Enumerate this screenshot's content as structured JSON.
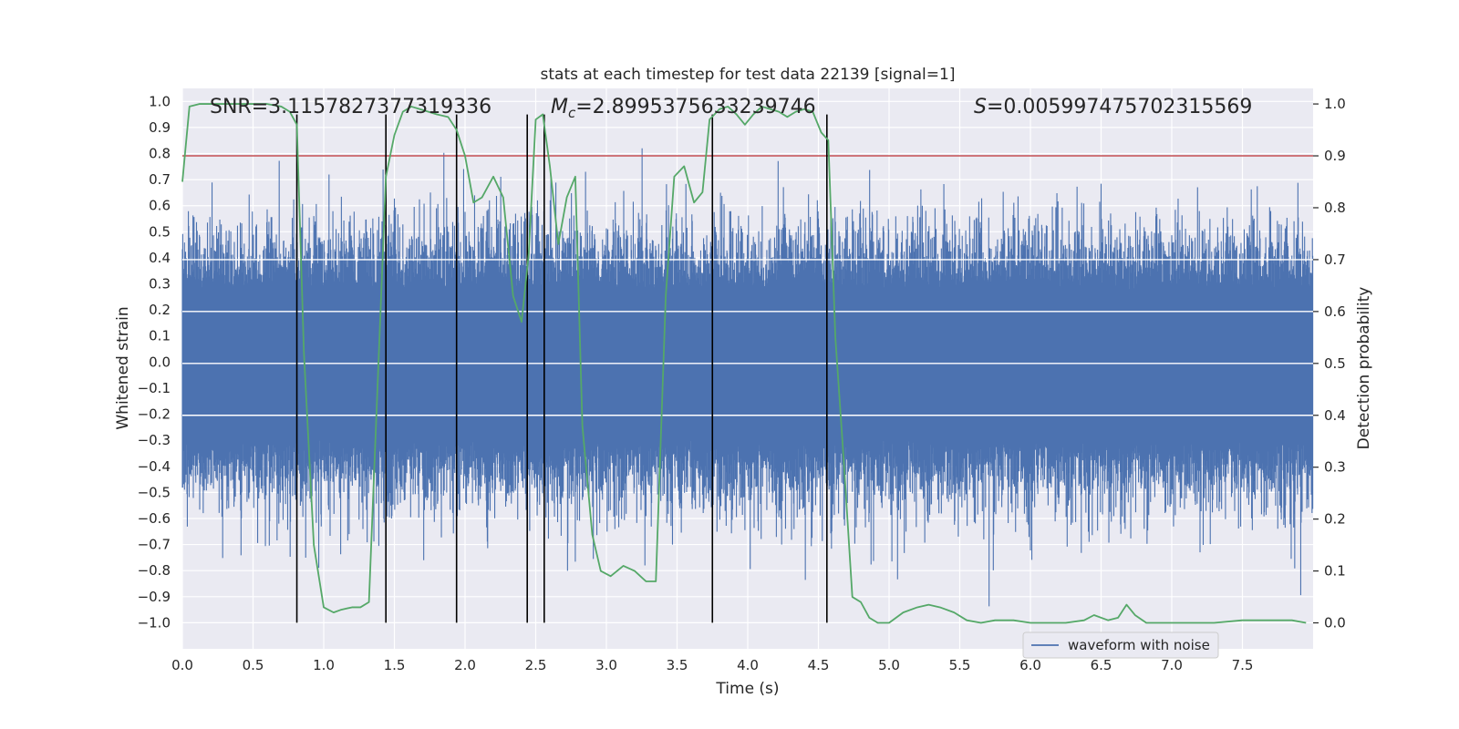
{
  "chart_data": {
    "type": "line",
    "title": "stats at each timestep for test data 22139 [signal=1]",
    "xlabel": "Time (s)",
    "ylabel": "Whitened strain",
    "y2label": "Detection probability",
    "xlim": [
      0.0,
      8.0
    ],
    "ylim": [
      -1.1,
      1.05
    ],
    "y2lim": [
      -0.05,
      1.03
    ],
    "x_ticks": [
      "0.0",
      "0.5",
      "1.0",
      "1.5",
      "2.0",
      "2.5",
      "3.0",
      "3.5",
      "4.0",
      "4.5",
      "5.0",
      "5.5",
      "6.0",
      "6.5",
      "7.0",
      "7.5"
    ],
    "y_ticks": [
      "1.0",
      "0.9",
      "0.8",
      "0.7",
      "0.6",
      "0.5",
      "0.4",
      "0.3",
      "0.2",
      "0.1",
      "0.0",
      "-0.1",
      "-0.2",
      "-0.3",
      "-0.4",
      "-0.5",
      "-0.6",
      "-0.7",
      "-0.8",
      "-0.9",
      "-1.0"
    ],
    "y2_ticks": [
      "1.0",
      "0.9",
      "0.8",
      "0.7",
      "0.6",
      "0.5",
      "0.4",
      "0.3",
      "0.2",
      "0.1",
      "0.0"
    ],
    "annotations": {
      "snr": "SNR=3.1157827377319336",
      "mc_symbol": "M",
      "mc_sub": "c",
      "mc_value": "=2.8995375633239746",
      "s_symbol": "S",
      "s_value": "=0.005997475702315569"
    },
    "grid": true,
    "legend_position": "lower center",
    "series": [
      {
        "name": "waveform with noise",
        "color": "#4c72b0",
        "axis": "left",
        "description_values": {
          "typical_abs": 0.3,
          "peak_max": 0.82,
          "peak_min": -1.0,
          "sample_rate_hz": 2048
        }
      },
      {
        "axis": "right",
        "color": "#55a868",
        "x": [
          0.0,
          0.05,
          0.12,
          0.2,
          0.3,
          0.4,
          0.5,
          0.6,
          0.7,
          0.76,
          0.81,
          0.86,
          0.93,
          1.0,
          1.07,
          1.12,
          1.2,
          1.26,
          1.32,
          1.38,
          1.44,
          1.5,
          1.56,
          1.62,
          1.68,
          1.74,
          1.8,
          1.88,
          1.94,
          2.0,
          2.06,
          2.12,
          2.2,
          2.27,
          2.34,
          2.4,
          2.45,
          2.5,
          2.55,
          2.6,
          2.66,
          2.72,
          2.78,
          2.83,
          2.9,
          2.96,
          3.03,
          3.12,
          3.2,
          3.28,
          3.35,
          3.42,
          3.48,
          3.55,
          3.62,
          3.68,
          3.73,
          3.8,
          3.86,
          3.92,
          3.98,
          4.04,
          4.1,
          4.16,
          4.22,
          4.28,
          4.34,
          4.4,
          4.46,
          4.52,
          4.57,
          4.62,
          4.68,
          4.74,
          4.8,
          4.86,
          4.92,
          5.0,
          5.1,
          5.2,
          5.28,
          5.36,
          5.46,
          5.55,
          5.65,
          5.75,
          5.88,
          6.0,
          6.12,
          6.25,
          6.38,
          6.45,
          6.55,
          6.62,
          6.68,
          6.74,
          6.82,
          6.95,
          7.1,
          7.3,
          7.5,
          7.7,
          7.85,
          7.95
        ],
        "values": [
          0.85,
          0.995,
          1.0,
          1.0,
          1.0,
          1.0,
          1.0,
          1.0,
          0.995,
          0.985,
          0.96,
          0.52,
          0.15,
          0.03,
          0.02,
          0.025,
          0.03,
          0.03,
          0.04,
          0.45,
          0.86,
          0.94,
          0.985,
          0.995,
          0.99,
          0.985,
          0.98,
          0.975,
          0.95,
          0.9,
          0.81,
          0.82,
          0.86,
          0.82,
          0.63,
          0.58,
          0.71,
          0.97,
          0.98,
          0.88,
          0.73,
          0.82,
          0.86,
          0.38,
          0.17,
          0.1,
          0.09,
          0.11,
          0.1,
          0.08,
          0.08,
          0.63,
          0.86,
          0.88,
          0.81,
          0.83,
          0.97,
          0.99,
          0.995,
          0.98,
          0.96,
          0.98,
          0.995,
          0.99,
          0.985,
          0.975,
          0.985,
          0.99,
          0.985,
          0.945,
          0.93,
          0.55,
          0.31,
          0.05,
          0.04,
          0.01,
          0.0,
          0.0,
          0.02,
          0.03,
          0.035,
          0.03,
          0.02,
          0.005,
          0.0,
          0.005,
          0.005,
          0.0,
          0.0,
          0.0,
          0.005,
          0.015,
          0.005,
          0.01,
          0.035,
          0.015,
          0.0,
          0.0,
          0.0,
          0.0,
          0.005,
          0.005,
          0.005,
          0.0
        ]
      }
    ],
    "threshold_line": {
      "y2_value": 0.9,
      "color": "#c44e52"
    },
    "white_hlines_y2": [
      0.7,
      0.6,
      0.5,
      0.4
    ],
    "vlines": {
      "x": [
        0.81,
        1.44,
        1.94,
        2.44,
        2.56,
        3.75,
        4.56
      ],
      "ymin": -1.0,
      "ymax": 0.95,
      "color": "#000000"
    }
  }
}
